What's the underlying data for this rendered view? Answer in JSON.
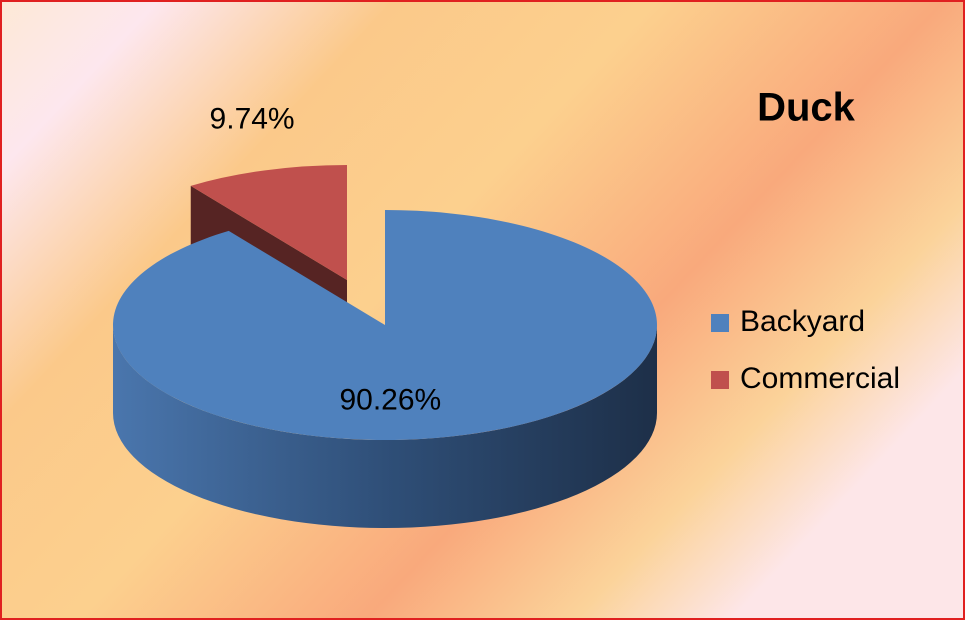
{
  "chart_data": {
    "type": "pie",
    "title": "Duck",
    "categories": [
      "Backyard",
      "Commercial"
    ],
    "values": [
      90.26,
      9.74
    ],
    "value_labels": [
      "90.26%",
      "9.74%"
    ],
    "colors": [
      "#4f81bd",
      "#c0504d"
    ],
    "legend": "right"
  }
}
